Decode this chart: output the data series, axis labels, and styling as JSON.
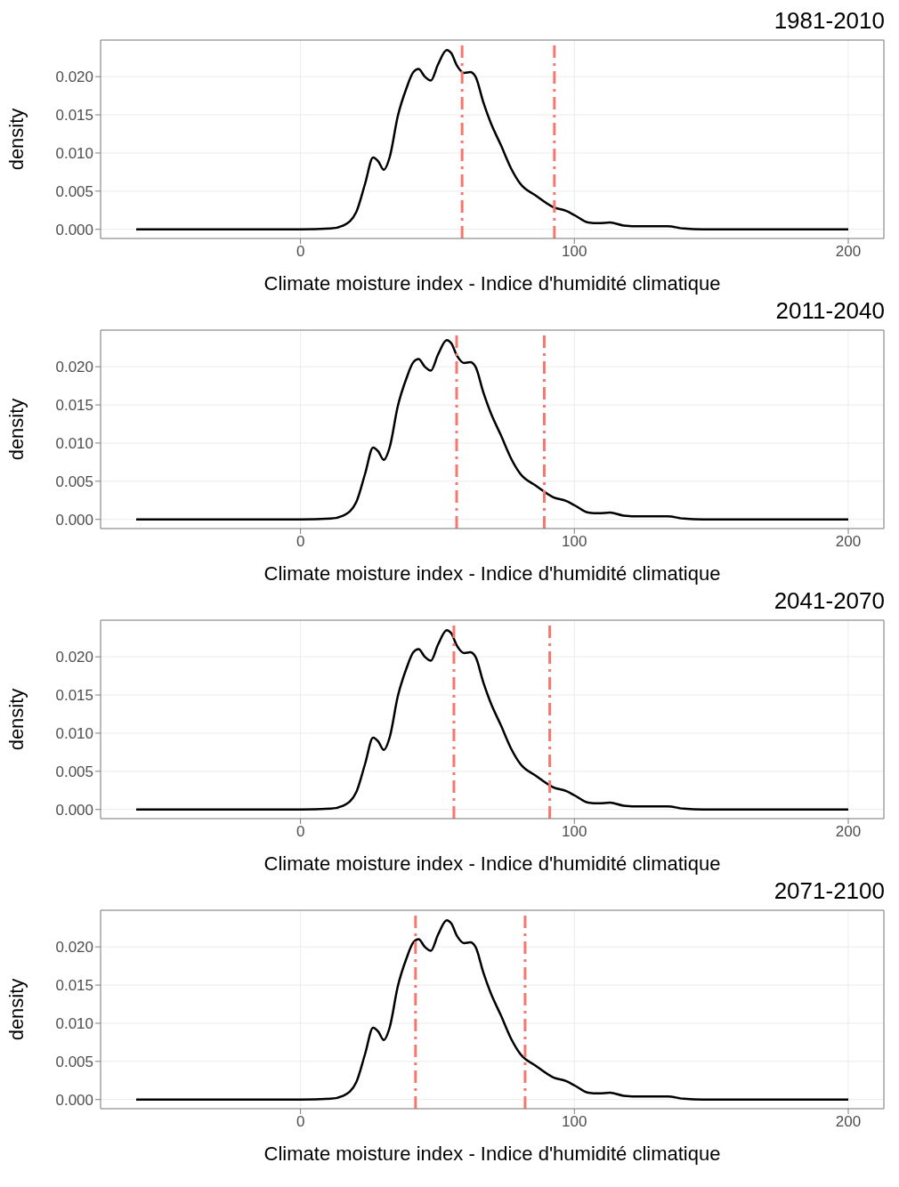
{
  "chart_data": [
    {
      "type": "line",
      "title": "1981-2010",
      "xlabel": "Climate moisture index - Indice d'humidité climatique",
      "ylabel": "density",
      "x": [
        -60,
        0,
        11,
        15.7,
        20.4,
        23.6,
        26.5,
        28.4,
        30.4,
        32.6,
        35.5,
        38.7,
        41.2,
        43.1,
        45.4,
        47.6,
        50.2,
        53.4,
        55,
        57.2,
        59.7,
        62,
        63.9,
        66.8,
        69.3,
        73.2,
        77,
        80.2,
        86,
        92.3,
        97.1,
        100.3,
        105,
        109,
        113,
        118,
        124,
        134,
        140,
        147,
        200
      ],
      "series": [
        {
          "color": "#000000",
          "values": [
            0,
            0,
            0.0001,
            0.0005,
            0.0023,
            0.006,
            0.0094,
            0.0089,
            0.0078,
            0.0095,
            0.0148,
            0.0185,
            0.0206,
            0.021,
            0.02,
            0.0195,
            0.0216,
            0.0235,
            0.0231,
            0.0214,
            0.0205,
            0.0206,
            0.02,
            0.0166,
            0.0141,
            0.011,
            0.0079,
            0.006,
            0.0044,
            0.0029,
            0.0024,
            0.0018,
            0.0009,
            0.0008,
            0.0009,
            0.0005,
            0.0004,
            0.0004,
            0.0001,
            0,
            0
          ]
        }
      ],
      "xlim": [
        -73,
        213
      ],
      "ylim": [
        -0.0012,
        0.0248
      ],
      "xticks": [
        0,
        100,
        200
      ],
      "yticks": [
        {
          "value": 0,
          "label": "0.000"
        },
        {
          "value": 0.005,
          "label": "0.005"
        },
        {
          "value": 0.01,
          "label": "0.010"
        },
        {
          "value": 0.015,
          "label": "0.015"
        },
        {
          "value": 0.02,
          "label": "0.020"
        }
      ],
      "grid": true,
      "marker": "none",
      "line_style": "solid",
      "ref_lines": [
        {
          "axis": "x",
          "value": 59,
          "color": "#f8766d",
          "line_style": "dashed"
        },
        {
          "axis": "x",
          "value": 92.7,
          "color": "#f8766d",
          "line_style": "dashed"
        }
      ]
    },
    {
      "type": "line",
      "title": "2011-2040",
      "xlabel": "Climate moisture index - Indice d'humidité climatique",
      "ylabel": "density",
      "x": [
        -60,
        0,
        11,
        15.7,
        20.4,
        23.6,
        26.5,
        28.4,
        30.4,
        32.6,
        35.5,
        38.7,
        41.2,
        43.1,
        45.4,
        47.6,
        50.2,
        53.4,
        55,
        57.2,
        59.7,
        62,
        63.9,
        66.8,
        69.3,
        73.2,
        77,
        80.2,
        86,
        92.3,
        97.1,
        100.3,
        105,
        109,
        113,
        118,
        124,
        134,
        140,
        147,
        200
      ],
      "series": [
        {
          "color": "#000000",
          "values": [
            0,
            0,
            0.0001,
            0.0005,
            0.0023,
            0.006,
            0.0094,
            0.0089,
            0.0078,
            0.0095,
            0.0148,
            0.0185,
            0.0206,
            0.021,
            0.02,
            0.0195,
            0.0216,
            0.0235,
            0.0231,
            0.0214,
            0.0205,
            0.0206,
            0.02,
            0.0166,
            0.0141,
            0.011,
            0.0079,
            0.006,
            0.0044,
            0.0029,
            0.0024,
            0.0018,
            0.0009,
            0.0008,
            0.0009,
            0.0005,
            0.0004,
            0.0004,
            0.0001,
            0,
            0
          ]
        }
      ],
      "xlim": [
        -73,
        213
      ],
      "ylim": [
        -0.0012,
        0.0248
      ],
      "xticks": [
        0,
        100,
        200
      ],
      "yticks": [
        {
          "value": 0,
          "label": "0.000"
        },
        {
          "value": 0.005,
          "label": "0.005"
        },
        {
          "value": 0.01,
          "label": "0.010"
        },
        {
          "value": 0.015,
          "label": "0.015"
        },
        {
          "value": 0.02,
          "label": "0.020"
        }
      ],
      "grid": true,
      "marker": "none",
      "line_style": "solid",
      "ref_lines": [
        {
          "axis": "x",
          "value": 57,
          "color": "#f8766d",
          "line_style": "dashed"
        },
        {
          "axis": "x",
          "value": 89,
          "color": "#f8766d",
          "line_style": "dashed"
        }
      ]
    },
    {
      "type": "line",
      "title": "2041-2070",
      "xlabel": "Climate moisture index - Indice d'humidité climatique",
      "ylabel": "density",
      "x": [
        -60,
        0,
        11,
        15.7,
        20.4,
        23.6,
        26.5,
        28.4,
        30.4,
        32.6,
        35.5,
        38.7,
        41.2,
        43.1,
        45.4,
        47.6,
        50.2,
        53.4,
        55,
        57.2,
        59.7,
        62,
        63.9,
        66.8,
        69.3,
        73.2,
        77,
        80.2,
        86,
        92.3,
        97.1,
        100.3,
        105,
        109,
        113,
        118,
        124,
        134,
        140,
        147,
        200
      ],
      "series": [
        {
          "color": "#000000",
          "values": [
            0,
            0,
            0.0001,
            0.0005,
            0.0023,
            0.006,
            0.0094,
            0.0089,
            0.0078,
            0.0095,
            0.0148,
            0.0185,
            0.0206,
            0.021,
            0.02,
            0.0195,
            0.0216,
            0.0235,
            0.0231,
            0.0214,
            0.0205,
            0.0206,
            0.02,
            0.0166,
            0.0141,
            0.011,
            0.0079,
            0.006,
            0.0044,
            0.0029,
            0.0024,
            0.0018,
            0.0009,
            0.0008,
            0.0009,
            0.0005,
            0.0004,
            0.0004,
            0.0001,
            0,
            0
          ]
        }
      ],
      "xlim": [
        -73,
        213
      ],
      "ylim": [
        -0.0012,
        0.0248
      ],
      "xticks": [
        0,
        100,
        200
      ],
      "yticks": [
        {
          "value": 0,
          "label": "0.000"
        },
        {
          "value": 0.005,
          "label": "0.005"
        },
        {
          "value": 0.01,
          "label": "0.010"
        },
        {
          "value": 0.015,
          "label": "0.015"
        },
        {
          "value": 0.02,
          "label": "0.020"
        }
      ],
      "grid": true,
      "marker": "none",
      "line_style": "solid",
      "ref_lines": [
        {
          "axis": "x",
          "value": 56,
          "color": "#f8766d",
          "line_style": "dashed"
        },
        {
          "axis": "x",
          "value": 91,
          "color": "#f8766d",
          "line_style": "dashed"
        }
      ]
    },
    {
      "type": "line",
      "title": "2071-2100",
      "xlabel": "Climate moisture index - Indice d'humidité climatique",
      "ylabel": "density",
      "x": [
        -60,
        0,
        11,
        15.7,
        20.4,
        23.6,
        26.5,
        28.4,
        30.4,
        32.6,
        35.5,
        38.7,
        41.2,
        43.1,
        45.4,
        47.6,
        50.2,
        53.4,
        55,
        57.2,
        59.7,
        62,
        63.9,
        66.8,
        69.3,
        73.2,
        77,
        80.2,
        86,
        92.3,
        97.1,
        100.3,
        105,
        109,
        113,
        118,
        124,
        134,
        140,
        147,
        200
      ],
      "series": [
        {
          "color": "#000000",
          "values": [
            0,
            0,
            0.0001,
            0.0005,
            0.0023,
            0.006,
            0.0094,
            0.0089,
            0.0078,
            0.0095,
            0.0148,
            0.0185,
            0.0206,
            0.021,
            0.02,
            0.0195,
            0.0216,
            0.0235,
            0.0231,
            0.0214,
            0.0205,
            0.0206,
            0.02,
            0.0166,
            0.0141,
            0.011,
            0.0079,
            0.006,
            0.0044,
            0.0029,
            0.0024,
            0.0018,
            0.0009,
            0.0008,
            0.0009,
            0.0005,
            0.0004,
            0.0004,
            0.0001,
            0,
            0
          ]
        }
      ],
      "xlim": [
        -73,
        213
      ],
      "ylim": [
        -0.0012,
        0.0248
      ],
      "xticks": [
        0,
        100,
        200
      ],
      "yticks": [
        {
          "value": 0,
          "label": "0.000"
        },
        {
          "value": 0.005,
          "label": "0.005"
        },
        {
          "value": 0.01,
          "label": "0.010"
        },
        {
          "value": 0.015,
          "label": "0.015"
        },
        {
          "value": 0.02,
          "label": "0.020"
        }
      ],
      "grid": true,
      "marker": "none",
      "line_style": "solid",
      "ref_lines": [
        {
          "axis": "x",
          "value": 42,
          "color": "#f8766d",
          "line_style": "dashed"
        },
        {
          "axis": "x",
          "value": 82,
          "color": "#f8766d",
          "line_style": "dashed"
        }
      ]
    }
  ]
}
